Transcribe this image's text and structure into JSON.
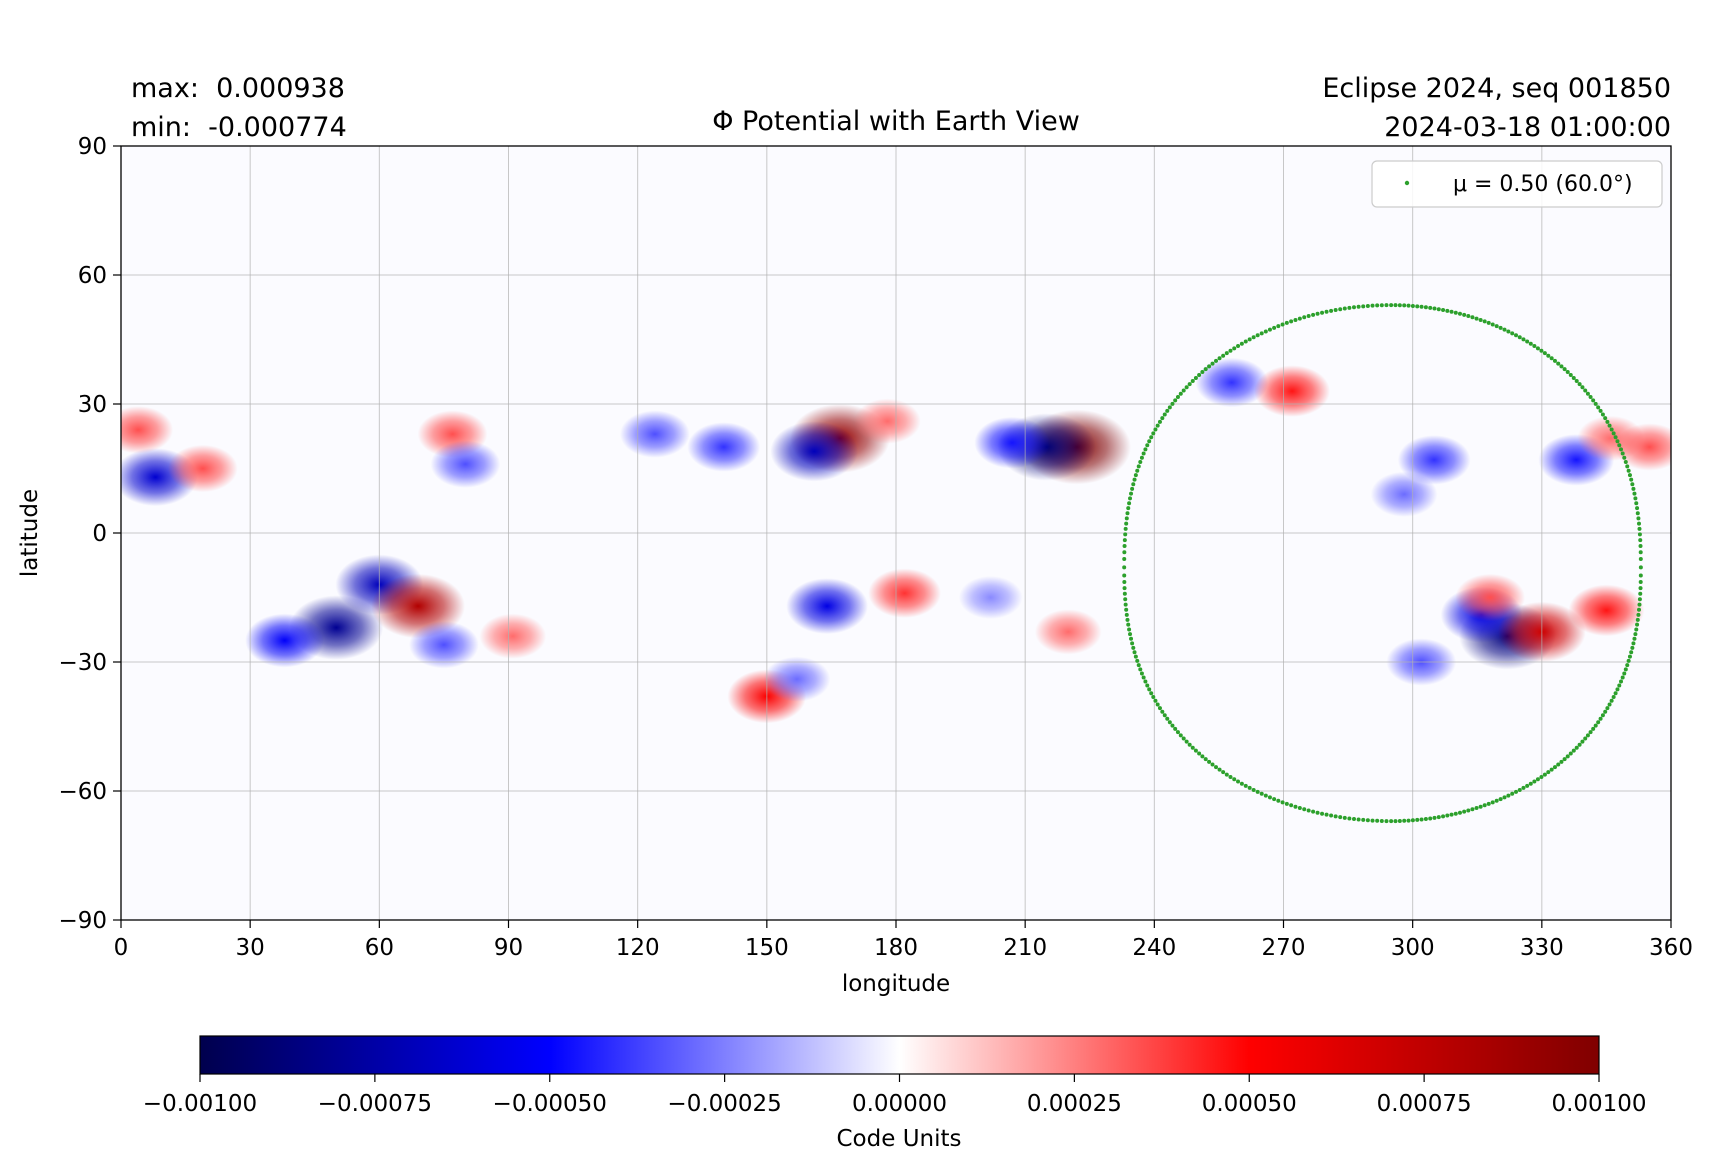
{
  "header": {
    "max_label": "max:  0.000938",
    "min_label": "min:  -0.000774",
    "title": "Φ Potential with Earth View",
    "run_label": "Eclipse 2024, seq 001850",
    "timestamp": "2024-03-18 01:00:00"
  },
  "chart_data": {
    "type": "heatmap",
    "title": "Φ Potential with Earth View",
    "xlabel": "longitude",
    "ylabel": "latitude",
    "xlim": [
      0,
      360
    ],
    "ylim": [
      -90,
      90
    ],
    "xticks": [
      0,
      30,
      60,
      90,
      120,
      150,
      180,
      210,
      240,
      270,
      300,
      330,
      360
    ],
    "yticks": [
      -90,
      -60,
      -30,
      0,
      30,
      60,
      90
    ],
    "xtick_labels": [
      "0",
      "30",
      "60",
      "90",
      "120",
      "150",
      "180",
      "210",
      "240",
      "270",
      "300",
      "330",
      "360"
    ],
    "ytick_labels": [
      "−90",
      "−60",
      "−30",
      "0",
      "30",
      "60",
      "90"
    ],
    "grid": true,
    "colormap": "seismic",
    "colorbar": {
      "label": "Code Units",
      "vmin": -0.001,
      "vmax": 0.001,
      "ticks": [
        -0.001,
        -0.00075,
        -0.0005,
        -0.00025,
        0,
        0.00025,
        0.0005,
        0.00075,
        0.001
      ],
      "tick_labels": [
        "−0.00100",
        "−0.00075",
        "−0.00050",
        "−0.00025",
        "0.00000",
        "0.00025",
        "0.00050",
        "0.00075",
        "0.00100"
      ]
    },
    "field_max": 0.000938,
    "field_min": -0.000774,
    "features": [
      {
        "lon": 222,
        "lat": 20,
        "value": 0.00094
      },
      {
        "lon": 215,
        "lat": 20,
        "value": -0.00077
      },
      {
        "lon": 207,
        "lat": 21,
        "value": -0.0004
      },
      {
        "lon": 167,
        "lat": 22,
        "value": 0.0008
      },
      {
        "lon": 161,
        "lat": 19,
        "value": -0.0006
      },
      {
        "lon": 140,
        "lat": 20,
        "value": -0.00035
      },
      {
        "lon": 124,
        "lat": 23,
        "value": -0.0003
      },
      {
        "lon": 178,
        "lat": 26,
        "value": 0.00025
      },
      {
        "lon": 8,
        "lat": 13,
        "value": -0.00055
      },
      {
        "lon": 19,
        "lat": 15,
        "value": 0.0003
      },
      {
        "lon": 4,
        "lat": 24,
        "value": 0.0003
      },
      {
        "lon": 77,
        "lat": 23,
        "value": 0.0003
      },
      {
        "lon": 80,
        "lat": 16,
        "value": -0.0003
      },
      {
        "lon": 50,
        "lat": -22,
        "value": -0.0007
      },
      {
        "lon": 60,
        "lat": -12,
        "value": -0.0006
      },
      {
        "lon": 38,
        "lat": -25,
        "value": -0.00045
      },
      {
        "lon": 69,
        "lat": -17,
        "value": 0.0007
      },
      {
        "lon": 75,
        "lat": -26,
        "value": -0.0003
      },
      {
        "lon": 91,
        "lat": -24,
        "value": 0.00025
      },
      {
        "lon": 164,
        "lat": -17,
        "value": -0.0005
      },
      {
        "lon": 182,
        "lat": -14,
        "value": 0.00035
      },
      {
        "lon": 150,
        "lat": -38,
        "value": 0.00045
      },
      {
        "lon": 157,
        "lat": -34,
        "value": -0.00025
      },
      {
        "lon": 220,
        "lat": -23,
        "value": 0.00025
      },
      {
        "lon": 202,
        "lat": -15,
        "value": -0.0002
      },
      {
        "lon": 258,
        "lat": 35,
        "value": -0.00035
      },
      {
        "lon": 272,
        "lat": 33,
        "value": 0.0004
      },
      {
        "lon": 305,
        "lat": 17,
        "value": -0.00035
      },
      {
        "lon": 298,
        "lat": 9,
        "value": -0.00025
      },
      {
        "lon": 338,
        "lat": 17,
        "value": -0.0004
      },
      {
        "lon": 346,
        "lat": 22,
        "value": 0.00025
      },
      {
        "lon": 355,
        "lat": 20,
        "value": 0.0003
      },
      {
        "lon": 322,
        "lat": -24,
        "value": -0.00075
      },
      {
        "lon": 316,
        "lat": -19,
        "value": -0.0005
      },
      {
        "lon": 330,
        "lat": -23,
        "value": 0.0006
      },
      {
        "lon": 345,
        "lat": -18,
        "value": 0.0004
      },
      {
        "lon": 318,
        "lat": -15,
        "value": 0.0003
      },
      {
        "lon": 302,
        "lat": -30,
        "value": -0.0003
      }
    ],
    "legend": {
      "label": "μ = 0.50 (60.0°)",
      "position": "upper right",
      "color": "#2ca02c"
    },
    "series": [
      {
        "name": "μ = 0.50 (60.0°)",
        "type": "scatter",
        "color": "#2ca02c",
        "center": {
          "lon": 295,
          "lat": -8
        },
        "lat_max": 53,
        "lat_min": -67,
        "lon_min": 233,
        "lon_max": 353
      }
    ]
  }
}
